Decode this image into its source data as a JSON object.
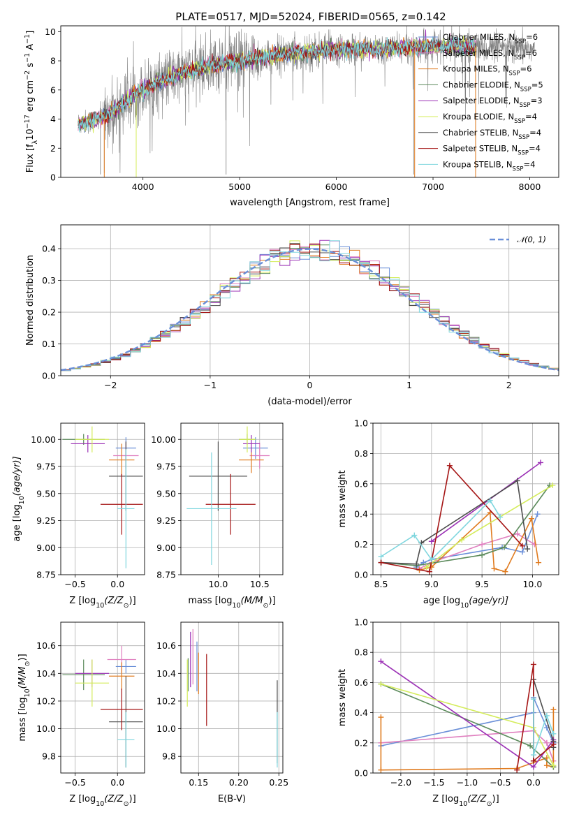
{
  "figure_title": "PLATE=0517, MJD=52024, FIBERID=0565, z=0.142",
  "colors": {
    "chabrier_miles": "#6a8fd8",
    "salpeter_miles": "#e07fbf",
    "kroupa_miles": "#e07b1f",
    "chabrier_elodie": "#5b8a5b",
    "salpeter_elodie": "#9b30b5",
    "kroupa_elodie": "#d4ec5a",
    "chabrier_stelib": "#4d4d4d",
    "salpeter_stelib": "#a51515",
    "kroupa_stelib": "#7fd6de",
    "data": "#7f7f7f",
    "gaussian": "#6a8fd8"
  },
  "chart_data": [
    {
      "id": "spectrum",
      "type": "line",
      "xlabel": "wavelength [Angstrom, rest frame]",
      "ylabel": "Flux [f",
      "ylabel_parts": [
        "Flux [f",
        "λ",
        "10",
        "−17",
        " erg cm",
        "−2",
        " s",
        "−1",
        " A",
        "−1",
        "]"
      ],
      "xlim": [
        3150,
        8300
      ],
      "ylim": [
        0,
        10.4
      ],
      "xticks": [
        4000,
        5000,
        6000,
        7000,
        8000
      ],
      "yticks": [
        0,
        2,
        4,
        6,
        8,
        10
      ],
      "legend_position": "top-right",
      "legend": [
        {
          "key": "chabrier_miles",
          "label": "Chabrier MILES, N",
          "sub": "SSP",
          "value": "=6"
        },
        {
          "key": "salpeter_miles",
          "label": "Salpeter MILES, N",
          "sub": "SSP",
          "value": "=6"
        },
        {
          "key": "kroupa_miles",
          "label": "Kroupa MILES, N",
          "sub": "SSP",
          "value": "=6"
        },
        {
          "key": "chabrier_elodie",
          "label": "Chabrier ELODIE, N",
          "sub": "SSP",
          "value": "=5"
        },
        {
          "key": "salpeter_elodie",
          "label": "Salpeter ELODIE, N",
          "sub": "SSP",
          "value": "=3"
        },
        {
          "key": "kroupa_elodie",
          "label": "Kroupa ELODIE, N",
          "sub": "SSP",
          "value": "=4"
        },
        {
          "key": "chabrier_stelib",
          "label": "Chabrier STELIB, N",
          "sub": "SSP",
          "value": "=4"
        },
        {
          "key": "salpeter_stelib",
          "label": "Salpeter STELIB, N",
          "sub": "SSP",
          "value": "=4"
        },
        {
          "key": "kroupa_stelib",
          "label": "Kroupa STELIB, N",
          "sub": "SSP",
          "value": "=4"
        }
      ],
      "continuum": [
        [
          3330,
          3.7
        ],
        [
          3500,
          3.9
        ],
        [
          3700,
          4.6
        ],
        [
          3900,
          5.6
        ],
        [
          4100,
          6.4
        ],
        [
          4300,
          6.9
        ],
        [
          4500,
          7.3
        ],
        [
          4700,
          7.7
        ],
        [
          4900,
          7.9
        ],
        [
          5100,
          8.1
        ],
        [
          5300,
          8.3
        ],
        [
          5500,
          8.5
        ],
        [
          5700,
          8.6
        ],
        [
          5900,
          8.7
        ],
        [
          6100,
          8.8
        ],
        [
          6300,
          8.8
        ],
        [
          6500,
          8.8
        ],
        [
          6700,
          8.9
        ],
        [
          6900,
          9.0
        ],
        [
          7100,
          9.0
        ],
        [
          7300,
          9.0
        ],
        [
          7500,
          8.9
        ],
        [
          7700,
          8.9
        ],
        [
          7900,
          8.8
        ],
        [
          8050,
          8.8
        ]
      ],
      "model_range": [
        3330,
        7450
      ],
      "dips": [
        [
          3560,
          0.2
        ],
        [
          3600,
          0.3
        ],
        [
          3930,
          0.4
        ],
        [
          4860,
          0.2
        ],
        [
          6800,
          0.2
        ],
        [
          7440,
          0.4
        ]
      ]
    },
    {
      "id": "residuals",
      "type": "histogram",
      "xlabel": "(data-model)/error",
      "ylabel": "Normed distribution",
      "xlim": [
        -2.5,
        2.5
      ],
      "ylim": [
        0,
        0.475
      ],
      "xticks": [
        -2,
        -1,
        0,
        1,
        2
      ],
      "yticks": [
        0.0,
        0.1,
        0.2,
        0.3,
        0.4
      ],
      "grid": true,
      "legend_position": "top-right",
      "gaussian_label": "𝒩(0, 1)",
      "bin_width": 0.1
    },
    {
      "id": "age_vs_Z",
      "type": "scatter_errorbar",
      "xlabel": "Z [log",
      "xlabel_parts": [
        "Z [log",
        "10",
        "(Z/Z",
        "⊙",
        ")]"
      ],
      "ylabel_parts": [
        "age  [log",
        "10",
        "(age/yr)]"
      ],
      "xlim": [
        -0.67,
        0.32
      ],
      "ylim": [
        8.75,
        10.15
      ],
      "xticks": [
        -0.5,
        0.0
      ],
      "yticks": [
        8.75,
        9.0,
        9.25,
        9.5,
        9.75,
        10.0
      ],
      "points": [
        {
          "key": "chabrier_miles",
          "x": 0.1,
          "y": 9.92,
          "xerr": 0.12,
          "yerr": 0.1
        },
        {
          "key": "salpeter_miles",
          "x": 0.1,
          "y": 9.85,
          "xerr": 0.15,
          "yerr": 0.12
        },
        {
          "key": "kroupa_miles",
          "x": 0.05,
          "y": 9.81,
          "xerr": 0.15,
          "yerr": 0.15
        },
        {
          "key": "chabrier_elodie",
          "x": -0.4,
          "y": 10.0,
          "xerr": 0.25,
          "yerr": 0.05
        },
        {
          "key": "salpeter_elodie",
          "x": -0.35,
          "y": 9.96,
          "xerr": 0.2,
          "yerr": 0.08
        },
        {
          "key": "kroupa_elodie",
          "x": -0.3,
          "y": 10.0,
          "xerr": 0.2,
          "yerr": 0.12
        },
        {
          "key": "chabrier_stelib",
          "x": 0.1,
          "y": 9.66,
          "xerr": 0.2,
          "yerr": 0.32
        },
        {
          "key": "salpeter_stelib",
          "x": 0.05,
          "y": 9.4,
          "xerr": 0.25,
          "yerr": 0.28
        },
        {
          "key": "kroupa_stelib",
          "x": 0.1,
          "y": 9.36,
          "xerr": 0.1,
          "yerr": 0.55
        }
      ]
    },
    {
      "id": "age_vs_mass",
      "type": "scatter_errorbar",
      "xlabel_parts": [
        "mass [log",
        "10",
        "(M/M",
        "⊙",
        ")]"
      ],
      "xlim": [
        9.55,
        10.78
      ],
      "ylim": [
        8.75,
        10.15
      ],
      "xticks": [
        10.0,
        10.5
      ],
      "yticks": [
        8.75,
        9.0,
        9.25,
        9.5,
        9.75,
        10.0
      ],
      "points": [
        {
          "key": "chabrier_miles",
          "x": 10.45,
          "y": 9.92,
          "xerr": 0.15,
          "yerr": 0.1
        },
        {
          "key": "salpeter_miles",
          "x": 10.5,
          "y": 9.85,
          "xerr": 0.12,
          "yerr": 0.12
        },
        {
          "key": "kroupa_miles",
          "x": 10.4,
          "y": 9.81,
          "xerr": 0.15,
          "yerr": 0.12
        },
        {
          "key": "chabrier_elodie",
          "x": 10.35,
          "y": 10.0,
          "xerr": 0.1,
          "yerr": 0.05
        },
        {
          "key": "salpeter_elodie",
          "x": 10.4,
          "y": 9.96,
          "xerr": 0.1,
          "yerr": 0.08
        },
        {
          "key": "kroupa_elodie",
          "x": 10.35,
          "y": 10.0,
          "xerr": 0.1,
          "yerr": 0.12
        },
        {
          "key": "chabrier_stelib",
          "x": 10.0,
          "y": 9.66,
          "xerr": 0.35,
          "yerr": 0.32
        },
        {
          "key": "salpeter_stelib",
          "x": 10.15,
          "y": 9.4,
          "xerr": 0.3,
          "yerr": 0.28
        },
        {
          "key": "kroupa_stelib",
          "x": 9.92,
          "y": 9.36,
          "xerr": 0.3,
          "yerr": 0.52
        }
      ]
    },
    {
      "id": "weight_vs_age",
      "type": "line",
      "xlabel_parts": [
        "age  [log",
        "10",
        "(age/yr)]"
      ],
      "ylabel": "mass weight",
      "xlim": [
        8.42,
        10.26
      ],
      "ylim": [
        0,
        1.0
      ],
      "xticks": [
        8.5,
        9.0,
        9.5,
        10.0
      ],
      "yticks": [
        0.0,
        0.2,
        0.4,
        0.6,
        0.8,
        1.0
      ],
      "grid": true,
      "series": [
        {
          "key": "chabrier_miles",
          "x": [
            8.85,
            8.92,
            9.0,
            9.7,
            9.9,
            10.05
          ],
          "y": [
            0.05,
            0.08,
            0.1,
            0.18,
            0.15,
            0.4
          ]
        },
        {
          "key": "salpeter_miles",
          "x": [
            8.88,
            9.0,
            9.5,
            9.85,
            10.02
          ],
          "y": [
            0.04,
            0.08,
            0.2,
            0.27,
            0.2
          ]
        },
        {
          "key": "kroupa_miles",
          "x": [
            8.88,
            9.0,
            9.58,
            9.62,
            9.73,
            9.99,
            10.06
          ],
          "y": [
            0.03,
            0.05,
            0.41,
            0.04,
            0.02,
            0.37,
            0.08
          ]
        },
        {
          "key": "chabrier_elodie",
          "x": [
            8.5,
            8.85,
            9.5,
            9.72,
            10.17
          ],
          "y": [
            0.08,
            0.06,
            0.13,
            0.18,
            0.59
          ]
        },
        {
          "key": "salpeter_elodie",
          "x": [
            9.0,
            10.08
          ],
          "y": [
            0.22,
            0.74
          ]
        },
        {
          "key": "kroupa_elodie",
          "x": [
            8.95,
            9.3,
            10.2
          ],
          "y": [
            0.05,
            0.23,
            0.59
          ]
        },
        {
          "key": "chabrier_stelib",
          "x": [
            8.5,
            8.85,
            8.9,
            9.85,
            9.95
          ],
          "y": [
            0.08,
            0.07,
            0.21,
            0.62,
            0.17
          ]
        },
        {
          "key": "salpeter_stelib",
          "x": [
            8.5,
            8.98,
            9.18,
            9.9
          ],
          "y": [
            0.08,
            0.02,
            0.72,
            0.19
          ]
        },
        {
          "key": "kroupa_stelib",
          "x": [
            8.5,
            8.83,
            9.0,
            9.58,
            9.68
          ],
          "y": [
            0.12,
            0.26,
            0.1,
            0.49,
            0.38
          ]
        }
      ]
    },
    {
      "id": "mass_vs_Z",
      "type": "scatter_errorbar",
      "xlabel_parts": [
        "Z [log",
        "10",
        "(Z/Z",
        "⊙",
        ")]"
      ],
      "ylabel_parts": [
        "mass [log",
        "10",
        "(M/M",
        "⊙",
        ")]"
      ],
      "xlim": [
        -0.67,
        0.32
      ],
      "ylim": [
        9.68,
        10.77
      ],
      "xticks": [
        -0.5,
        0.0
      ],
      "yticks": [
        9.8,
        10.0,
        10.2,
        10.4,
        10.6
      ],
      "points": [
        {
          "key": "chabrier_miles",
          "x": 0.1,
          "y": 10.45,
          "xerr": 0.12,
          "yerr": 0.05
        },
        {
          "key": "salpeter_miles",
          "x": 0.05,
          "y": 10.5,
          "xerr": 0.17,
          "yerr": 0.1
        },
        {
          "key": "kroupa_miles",
          "x": 0.05,
          "y": 10.38,
          "xerr": 0.15,
          "yerr": 0.1
        },
        {
          "key": "chabrier_elodie",
          "x": -0.4,
          "y": 10.39,
          "xerr": 0.25,
          "yerr": 0.11
        },
        {
          "key": "salpeter_elodie",
          "x": -0.3,
          "y": 10.4,
          "xerr": 0.2,
          "yerr": 0.1
        },
        {
          "key": "kroupa_elodie",
          "x": -0.3,
          "y": 10.33,
          "xerr": 0.2,
          "yerr": 0.17
        },
        {
          "key": "chabrier_stelib",
          "x": 0.1,
          "y": 10.05,
          "xerr": 0.2,
          "yerr": 0.33
        },
        {
          "key": "salpeter_stelib",
          "x": 0.05,
          "y": 10.14,
          "xerr": 0.25,
          "yerr": 0.15
        },
        {
          "key": "kroupa_stelib",
          "x": 0.1,
          "y": 9.92,
          "xerr": 0.1,
          "yerr": 0.2
        }
      ]
    },
    {
      "id": "mass_vs_ebv",
      "type": "scatter_errorbar",
      "xlabel": "E(B-V)",
      "xlim": [
        0.128,
        0.255
      ],
      "ylim": [
        9.68,
        10.77
      ],
      "xticks": [
        0.15,
        0.2,
        0.25
      ],
      "yticks": [
        9.8,
        10.0,
        10.2,
        10.4,
        10.6
      ],
      "points": [
        {
          "key": "chabrier_miles",
          "x": 0.148,
          "y": 10.45,
          "xerr": 0,
          "yerr": 0.18
        },
        {
          "key": "salpeter_miles",
          "x": 0.143,
          "y": 10.52,
          "xerr": 0,
          "yerr": 0.2
        },
        {
          "key": "kroupa_miles",
          "x": 0.15,
          "y": 10.4,
          "xerr": 0,
          "yerr": 0.15
        },
        {
          "key": "chabrier_elodie",
          "x": 0.137,
          "y": 10.39,
          "xerr": 0,
          "yerr": 0.12
        },
        {
          "key": "salpeter_elodie",
          "x": 0.14,
          "y": 10.5,
          "xerr": 0,
          "yerr": 0.2
        },
        {
          "key": "kroupa_elodie",
          "x": 0.136,
          "y": 10.33,
          "xerr": 0,
          "yerr": 0.17
        },
        {
          "key": "chabrier_stelib",
          "x": 0.248,
          "y": 10.05,
          "xerr": 0,
          "yerr": 0.3
        },
        {
          "key": "salpeter_stelib",
          "x": 0.16,
          "y": 10.28,
          "xerr": 0,
          "yerr": 0.26
        },
        {
          "key": "kroupa_stelib",
          "x": 0.248,
          "y": 9.92,
          "xerr": 0,
          "yerr": 0.2
        }
      ]
    },
    {
      "id": "weight_vs_Z",
      "type": "line",
      "xlabel_parts": [
        "Z [log",
        "10",
        "(Z/Z",
        "⊙",
        ")]"
      ],
      "ylabel": "mass weight",
      "xlim": [
        -2.42,
        0.38
      ],
      "ylim": [
        0,
        1.0
      ],
      "xticks": [
        -2.0,
        -1.5,
        -1.0,
        -0.5,
        0.0
      ],
      "yticks": [
        0.0,
        0.2,
        0.4,
        0.6,
        0.8,
        1.0
      ],
      "grid": true,
      "series": [
        {
          "key": "chabrier_miles",
          "x": [
            -2.3,
            0.0,
            0.0,
            0.2,
            0.3
          ],
          "y": [
            0.18,
            0.4,
            0.5,
            0.3,
            0.2
          ]
        },
        {
          "key": "salpeter_miles",
          "x": [
            -2.3,
            0.0,
            0.2,
            0.3
          ],
          "y": [
            0.2,
            0.28,
            0.2,
            0.08
          ]
        },
        {
          "key": "kroupa_miles",
          "x": [
            -2.3,
            -2.3,
            -0.25,
            0.2,
            0.2,
            0.3,
            0.3
          ],
          "y": [
            0.37,
            0.02,
            0.03,
            0.1,
            0.05,
            0.04,
            0.42
          ]
        },
        {
          "key": "chabrier_elodie",
          "x": [
            -2.3,
            -0.05,
            0.3
          ],
          "y": [
            0.59,
            0.18,
            0.04
          ]
        },
        {
          "key": "salpeter_elodie",
          "x": [
            -2.3,
            0.0,
            0.3
          ],
          "y": [
            0.74,
            0.04,
            0.22
          ]
        },
        {
          "key": "kroupa_elodie",
          "x": [
            -2.3,
            0.0,
            0.3
          ],
          "y": [
            0.59,
            0.3,
            0.05
          ]
        },
        {
          "key": "chabrier_stelib",
          "x": [
            0.0,
            0.0,
            0.3,
            0.3
          ],
          "y": [
            0.08,
            0.62,
            0.21,
            0.17
          ]
        },
        {
          "key": "salpeter_stelib",
          "x": [
            -0.25,
            0.0,
            0.0,
            0.3
          ],
          "y": [
            0.02,
            0.72,
            0.08,
            0.19
          ]
        },
        {
          "key": "kroupa_stelib",
          "x": [
            0.0,
            0.0,
            0.2,
            0.3
          ],
          "y": [
            0.49,
            0.12,
            0.38,
            0.26
          ]
        }
      ]
    }
  ]
}
